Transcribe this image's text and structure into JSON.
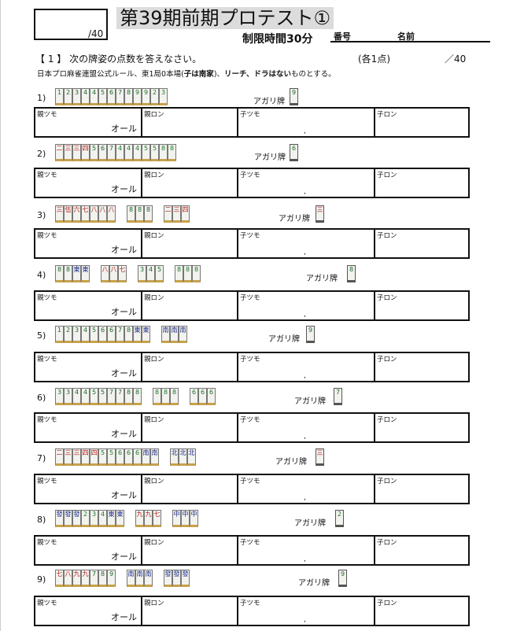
{
  "header": {
    "score_max": "/40",
    "title": "第39期前期プロテスト①",
    "time_limit": "制限時間30分",
    "number_label": "番号",
    "name_label": "名前"
  },
  "question": {
    "heading": "【 1 】 次の牌姿の点数を答えなさい。",
    "points": "(各1点)",
    "max": "／40",
    "rule_pre": "日本プロ麻雀連盟公式ルール、東1局0本場(",
    "rule_b1": "子は南家",
    "rule_mid": ")、",
    "rule_b2": "リーチ、ドラはない",
    "rule_post": "ものとする。"
  },
  "labels": {
    "agari": "アガリ牌",
    "dealer_tsumo": "親ツモ",
    "dealer_ron": "親ロン",
    "child_tsumo": "子ツモ",
    "child_ron": "子ロン",
    "all": "オール",
    "comma": ","
  },
  "problems": [
    {
      "num": "1)",
      "groups": [
        [
          "p",
          "1"
        ],
        [
          "p",
          "2"
        ],
        [
          "p",
          "3"
        ],
        [
          "p",
          "4"
        ],
        [
          "p",
          "4"
        ],
        [
          "p",
          "5"
        ],
        [
          "p",
          "6"
        ],
        [
          "p",
          "7"
        ],
        [
          "p",
          "8"
        ],
        [
          "s",
          "9"
        ],
        [
          "s",
          "9"
        ],
        [
          "s",
          "2"
        ],
        [
          "s",
          "3"
        ]
      ],
      "win": [
        "p",
        "9"
      ]
    },
    {
      "num": "2)",
      "groups": [
        [
          "m",
          "二"
        ],
        [
          "m",
          "三"
        ],
        [
          "m",
          "三"
        ],
        [
          "m",
          "四"
        ],
        [
          "p",
          "5"
        ],
        [
          "p",
          "6"
        ],
        [
          "p",
          "7"
        ],
        [
          "s",
          "4"
        ],
        [
          "s",
          "4"
        ],
        [
          "s",
          "4"
        ],
        [
          "s",
          "5"
        ],
        [
          "s",
          "5"
        ],
        [
          "s",
          "8"
        ],
        [
          "s",
          "8"
        ]
      ],
      "win": [
        "s",
        "6"
      ]
    },
    {
      "num": "3)",
      "groups": [
        [
          "m",
          "三"
        ],
        [
          "m",
          "伍"
        ],
        [
          "m",
          "六"
        ],
        [
          "m",
          "七"
        ],
        [
          "m",
          "八"
        ],
        [
          "m",
          "八"
        ],
        [
          "m",
          "八"
        ]
      ],
      "melds": [
        [
          "p",
          "8",
          "p",
          "8",
          "p",
          "8"
        ],
        [
          "m",
          "二",
          "m",
          "三",
          "m",
          "四"
        ]
      ],
      "win": [
        "m",
        "三"
      ]
    },
    {
      "num": "4)",
      "groups": [
        [
          "p",
          "8"
        ],
        [
          "p",
          "8"
        ],
        [
          "z",
          "東"
        ],
        [
          "z",
          "東"
        ]
      ],
      "melds": [
        [
          "m",
          "八",
          "m",
          "八",
          "m",
          "七"
        ],
        [
          "p",
          "3",
          "p",
          "4",
          "p",
          "5"
        ],
        [
          "s",
          "8",
          "s",
          "8",
          "s",
          "8"
        ]
      ],
      "win": [
        "p",
        "8"
      ]
    },
    {
      "num": "5)",
      "groups": [
        [
          "p",
          "1"
        ],
        [
          "p",
          "2"
        ],
        [
          "p",
          "3"
        ],
        [
          "p",
          "4"
        ],
        [
          "p",
          "5"
        ],
        [
          "p",
          "6"
        ],
        [
          "p",
          "6"
        ],
        [
          "p",
          "7"
        ],
        [
          "p",
          "8"
        ],
        [
          "z",
          "東"
        ],
        [
          "z",
          "東"
        ]
      ],
      "melds": [
        [
          "z",
          "南",
          "z",
          "南",
          "z",
          "南"
        ]
      ],
      "win": [
        "p",
        "9"
      ]
    },
    {
      "num": "6)",
      "groups": [
        [
          "p",
          "3"
        ],
        [
          "p",
          "3"
        ],
        [
          "p",
          "4"
        ],
        [
          "p",
          "4"
        ],
        [
          "p",
          "5"
        ],
        [
          "p",
          "5"
        ],
        [
          "p",
          "7"
        ],
        [
          "p",
          "7"
        ],
        [
          "p",
          "8"
        ],
        [
          "p",
          "8"
        ]
      ],
      "melds": [
        [
          "s",
          "8",
          "s",
          "8",
          "s",
          "8"
        ],
        [
          "s",
          "6",
          "s",
          "6",
          "s",
          "6"
        ]
      ],
      "win": [
        "p",
        "7"
      ]
    },
    {
      "num": "7)",
      "groups": [
        [
          "m",
          "二"
        ],
        [
          "m",
          "三"
        ],
        [
          "m",
          "三"
        ],
        [
          "m",
          "四"
        ],
        [
          "m",
          "四"
        ],
        [
          "s",
          "5"
        ],
        [
          "s",
          "5"
        ],
        [
          "s",
          "6"
        ],
        [
          "s",
          "6"
        ],
        [
          "s",
          "6"
        ],
        [
          "z",
          "南"
        ],
        [
          "z",
          "南"
        ]
      ],
      "melds": [
        [
          "z",
          "北",
          "z",
          "北",
          "z",
          "北"
        ]
      ],
      "win": [
        "m",
        "三"
      ]
    },
    {
      "num": "8)",
      "groups": [
        [
          "z",
          "發"
        ],
        [
          "z",
          "發"
        ],
        [
          "z",
          "發"
        ],
        [
          "s",
          "2"
        ],
        [
          "s",
          "3"
        ],
        [
          "s",
          "4"
        ],
        [
          "z",
          "東"
        ],
        [
          "z",
          "東"
        ]
      ],
      "melds": [
        [
          "m",
          "九",
          "m",
          "九",
          "m",
          "七"
        ],
        [
          "z",
          "中",
          "z",
          "中",
          "z",
          "中"
        ]
      ],
      "win": [
        "s",
        "2"
      ]
    },
    {
      "num": "9)",
      "groups": [
        [
          "m",
          "七"
        ],
        [
          "m",
          "八"
        ],
        [
          "m",
          "九"
        ],
        [
          "m",
          "九"
        ],
        [
          "p",
          "7"
        ],
        [
          "p",
          "8"
        ],
        [
          "p",
          "9"
        ]
      ],
      "melds": [
        [
          "z",
          "南",
          "z",
          "南",
          "z",
          "南"
        ],
        [
          "z",
          "發",
          "z",
          "發",
          "z",
          "發"
        ]
      ],
      "win": [
        "p",
        "9"
      ]
    }
  ]
}
